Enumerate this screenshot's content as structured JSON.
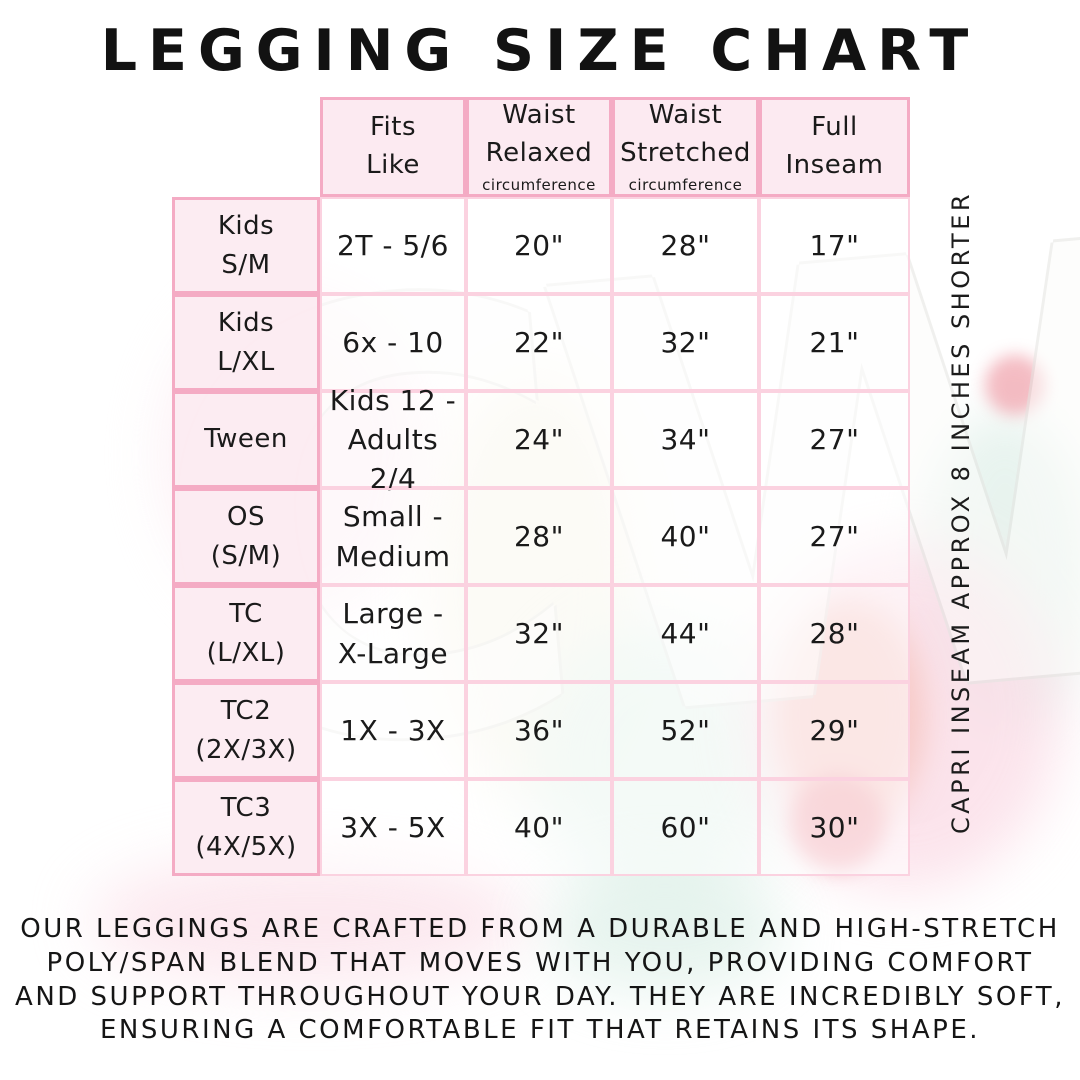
{
  "title": "LEGGING SIZE CHART",
  "watermark_text": "CW",
  "side_note": "CAPRI INSEAM APPROX 8 INCHES SHORTER",
  "footer": "OUR LEGGINGS ARE CRAFTED FROM A DURABLE AND HIGH-STRETCH\nPOLY/SPAN BLEND THAT MOVES WITH YOU, PROVIDING COMFORT\nAND SUPPORT THROUGHOUT YOUR DAY. THEY ARE INCREDIBLY SOFT,\nENSURING A COMFORTABLE FIT THAT RETAINS ITS SHAPE.",
  "colors": {
    "header_bg": "#fce9f0",
    "border_strong": "#f4abc4",
    "border_light": "#fbd2e0",
    "accent_coral": "#ef9aa4",
    "accent_teal": "#d9ece4",
    "text": "#1a1a1a"
  },
  "chart_data": {
    "type": "table",
    "title": "LEGGING SIZE CHART",
    "columns": [
      {
        "label": "Fits\nLike",
        "sub": ""
      },
      {
        "label": "Waist\nRelaxed",
        "sub": "circumference"
      },
      {
        "label": "Waist\nStretched",
        "sub": "circumference"
      },
      {
        "label": "Full\nInseam",
        "sub": ""
      }
    ],
    "rows": [
      {
        "label": "Kids\nS/M",
        "fits_like": "2T - 5/6",
        "waist_relaxed": "20\"",
        "waist_stretched": "28\"",
        "full_inseam": "17\""
      },
      {
        "label": "Kids\nL/XL",
        "fits_like": "6x - 10",
        "waist_relaxed": "22\"",
        "waist_stretched": "32\"",
        "full_inseam": "21\""
      },
      {
        "label": "Tween",
        "fits_like": "Kids 12 -\nAdults 2/4",
        "waist_relaxed": "24\"",
        "waist_stretched": "34\"",
        "full_inseam": "27\""
      },
      {
        "label": "OS\n(S/M)",
        "fits_like": "Small -\nMedium",
        "waist_relaxed": "28\"",
        "waist_stretched": "40\"",
        "full_inseam": "27\""
      },
      {
        "label": "TC\n(L/XL)",
        "fits_like": "Large -\nX-Large",
        "waist_relaxed": "32\"",
        "waist_stretched": "44\"",
        "full_inseam": "28\""
      },
      {
        "label": "TC2\n(2X/3X)",
        "fits_like": "1X - 3X",
        "waist_relaxed": "36\"",
        "waist_stretched": "52\"",
        "full_inseam": "29\""
      },
      {
        "label": "TC3\n(4X/5X)",
        "fits_like": "3X - 5X",
        "waist_relaxed": "40\"",
        "waist_stretched": "60\"",
        "full_inseam": "30\""
      }
    ],
    "note": "CAPRI INSEAM APPROX 8 INCHES SHORTER"
  }
}
